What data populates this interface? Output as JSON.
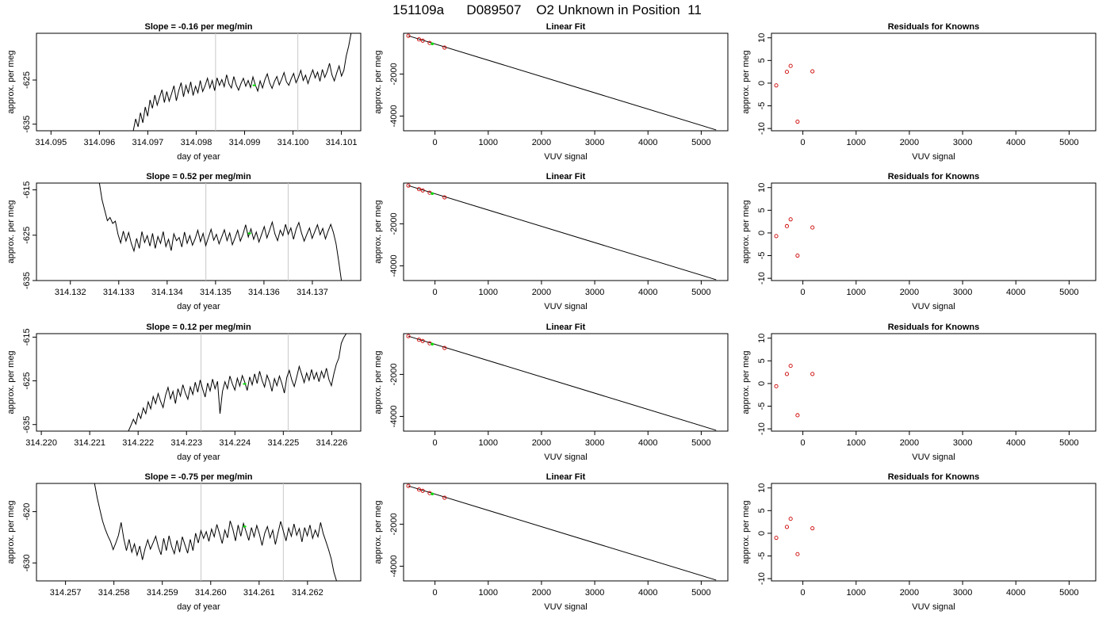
{
  "figure": {
    "title": "151109a      D089507    O2 Unknown in Position  11"
  },
  "colors": {
    "line": "#000000",
    "marker_known": "#cc0000",
    "marker_unknown": "#00dd00",
    "vline": "#c8c8c8"
  },
  "chart_data": [
    {
      "id": "ts1",
      "type": "line",
      "row": 0,
      "col": 0,
      "title": "Slope =  -0.16  per meg/min",
      "xlabel": "day of year",
      "ylabel": "approx. per meg",
      "xlim": [
        314.0947,
        314.1014
      ],
      "ylim": [
        -636.5,
        -614.4
      ],
      "xticks": [
        "314.095",
        "314.096",
        "314.097",
        "314.098",
        "314.099",
        "314.100",
        "314.101"
      ],
      "yticks": [
        "-625",
        "-635"
      ],
      "vlines": [
        314.0984,
        314.1001
      ],
      "start": 314.0967,
      "end": 314.1012,
      "step": 2e-05,
      "y": [
        -636.5,
        -633.8,
        -635.6,
        -632.4,
        -634.7,
        -631.1,
        -633.2,
        -629.5,
        -631.4,
        -628.4,
        -630.7,
        -628.9,
        -627.2,
        -630.1,
        -627.6,
        -629.8,
        -628.1,
        -626.3,
        -629.7,
        -627.4,
        -625.6,
        -628.8,
        -626.2,
        -627.9,
        -625.4,
        -628.5,
        -626.4,
        -627.9,
        -625.1,
        -627.6,
        -626.3,
        -624.6,
        -626.8,
        -625.1,
        -627.4,
        -624.5,
        -626.2,
        -624.9,
        -626.5,
        -623.8,
        -625.9,
        -626.8,
        -624.2,
        -626.1,
        -627.3,
        -625.8,
        -624.6,
        -626.4,
        -625.1,
        -626.7,
        -624.3,
        -626.1,
        -627.5,
        -625.2,
        -626.8,
        -624.9,
        -623.6,
        -625.7,
        -626.9,
        -625.3,
        -624.2,
        -626.1,
        -624.8,
        -623.3,
        -625.4,
        -626.2,
        -624.7,
        -623.5,
        -625.6,
        -624.4,
        -622.8,
        -625.1,
        -623.9,
        -625.8,
        -624.1,
        -622.7,
        -624.5,
        -623.2,
        -625.3,
        -622.6,
        -624.4,
        -623.1,
        -621.2,
        -623.8,
        -625.2,
        -623.4,
        -621.8,
        -624.1,
        -622.8,
        -619.5,
        -617.3,
        -614.4
      ],
      "unknown_point": {
        "x": 314.0992,
        "y": -626.2
      }
    },
    {
      "id": "fit1",
      "type": "scatter",
      "row": 0,
      "col": 1,
      "title": "Linear Fit",
      "xlabel": "VUV signal",
      "ylabel": "approx. per meg",
      "xlim": [
        -590,
        5500
      ],
      "ylim": [
        -4700,
        -60
      ],
      "xticks": [
        0,
        1000,
        2000,
        3000,
        4000,
        5000
      ],
      "yticks": [
        -2000,
        -4000
      ],
      "line": {
        "x": [
          -500,
          5280
        ],
        "y": [
          -180,
          -4660
        ]
      },
      "knowns": {
        "x": [
          -500,
          -300,
          -230,
          -100,
          180
        ],
        "y": [
          -180,
          -350,
          -410,
          -520,
          -740
        ]
      },
      "unknown": {
        "x": -50,
        "y": -560
      }
    },
    {
      "id": "res1",
      "type": "scatter",
      "row": 0,
      "col": 2,
      "title": "Residuals for Knowns",
      "xlabel": "VUV signal",
      "ylabel": "approx. per meg",
      "xlim": [
        -590,
        5500
      ],
      "ylim": [
        -10.5,
        11
      ],
      "xticks": [
        0,
        1000,
        2000,
        3000,
        4000,
        5000
      ],
      "yticks": [
        10,
        5,
        0,
        -5,
        -10
      ],
      "points": {
        "x": [
          -500,
          -300,
          -230,
          -100,
          180
        ],
        "y": [
          -0.5,
          2.5,
          3.8,
          -8.5,
          2.6
        ]
      }
    },
    {
      "id": "ts2",
      "type": "line",
      "row": 1,
      "col": 0,
      "title": "Slope =  0.52  per meg/min",
      "xlabel": "day of year",
      "ylabel": "approx. per meg",
      "xlim": [
        314.1313,
        314.138
      ],
      "ylim": [
        -635,
        -613.5
      ],
      "xticks": [
        "314.132",
        "314.133",
        "314.134",
        "314.135",
        "314.136",
        "314.137"
      ],
      "yticks": [
        "-615",
        "-625",
        "-635"
      ],
      "vlines": [
        314.1348,
        314.1365
      ],
      "start": 314.1326,
      "end": 314.1376,
      "step": 2e-05,
      "y": [
        -613.5,
        -617.2,
        -619.5,
        -621.8,
        -621.1,
        -622.4,
        -621.9,
        -624.8,
        -626.7,
        -624.1,
        -626.3,
        -624.4,
        -626.8,
        -628.5,
        -625.7,
        -627.9,
        -624.2,
        -626.6,
        -625.1,
        -627.4,
        -624.6,
        -627.9,
        -625.3,
        -626.8,
        -624.2,
        -627.5,
        -625.9,
        -628.4,
        -624.7,
        -626.2,
        -625.5,
        -627.6,
        -624.3,
        -626.8,
        -625.1,
        -627.2,
        -625.8,
        -623.9,
        -626.4,
        -624.6,
        -627.3,
        -625.5,
        -623.7,
        -626.1,
        -624.8,
        -626.9,
        -625.4,
        -623.8,
        -626.2,
        -624.5,
        -627.1,
        -625.6,
        -623.9,
        -626.3,
        -624.8,
        -622.7,
        -625.4,
        -623.6,
        -625.9,
        -624.3,
        -626.5,
        -624.8,
        -623.1,
        -625.6,
        -623.9,
        -622.1,
        -624.7,
        -626.2,
        -623.9,
        -625.1,
        -622.6,
        -624.8,
        -623.4,
        -625.9,
        -623.6,
        -622.2,
        -624.5,
        -626.3,
        -624.8,
        -623.4,
        -625.7,
        -624.2,
        -622.7,
        -624.9,
        -623.5,
        -625.8,
        -624.1,
        -622.6,
        -624.4,
        -626.9,
        -630.8,
        -635
      ],
      "unknown_point": {
        "x": 314.1357,
        "y": -624.6
      }
    },
    {
      "id": "fit2",
      "type": "scatter",
      "row": 1,
      "col": 1,
      "title": "Linear Fit",
      "xlabel": "VUV signal",
      "ylabel": "approx. per meg",
      "xlim": [
        -590,
        5500
      ],
      "ylim": [
        -4700,
        -60
      ],
      "xticks": [
        0,
        1000,
        2000,
        3000,
        4000,
        5000
      ],
      "yticks": [
        -2000,
        -4000
      ],
      "line": {
        "x": [
          -500,
          5280
        ],
        "y": [
          -180,
          -4660
        ]
      },
      "knowns": {
        "x": [
          -500,
          -300,
          -230,
          -100,
          180
        ],
        "y": [
          -180,
          -350,
          -410,
          -520,
          -740
        ]
      },
      "unknown": {
        "x": -50,
        "y": -560
      }
    },
    {
      "id": "res2",
      "type": "scatter",
      "row": 1,
      "col": 2,
      "title": "Residuals for Knowns",
      "xlabel": "VUV signal",
      "ylabel": "approx. per meg",
      "xlim": [
        -590,
        5500
      ],
      "ylim": [
        -10.5,
        11
      ],
      "xticks": [
        0,
        1000,
        2000,
        3000,
        4000,
        5000
      ],
      "yticks": [
        10,
        5,
        0,
        -5,
        -10
      ],
      "points": {
        "x": [
          -500,
          -300,
          -230,
          -100,
          180
        ],
        "y": [
          -0.7,
          1.5,
          3.0,
          -5.0,
          1.2
        ]
      }
    },
    {
      "id": "ts3",
      "type": "line",
      "row": 2,
      "col": 0,
      "title": "Slope =  0.12  per meg/min",
      "xlabel": "day of year",
      "ylabel": "approx. per meg",
      "xlim": [
        314.2199,
        314.2266
      ],
      "ylim": [
        -636.5,
        -614.2
      ],
      "xticks": [
        "314.220",
        "314.221",
        "314.222",
        "314.223",
        "314.224",
        "314.225",
        "314.226"
      ],
      "yticks": [
        "-615",
        "-625",
        "-635"
      ],
      "vlines": [
        314.2233,
        314.2251
      ],
      "start": 314.2218,
      "end": 314.2263,
      "step": 2e-05,
      "y": [
        -636.5,
        -635.2,
        -633.8,
        -634.9,
        -632.4,
        -633.6,
        -631.2,
        -632.5,
        -629.8,
        -631.4,
        -628.6,
        -630.2,
        -627.9,
        -629.7,
        -631.1,
        -628.3,
        -626.5,
        -629.1,
        -627.4,
        -630.2,
        -626.8,
        -628.5,
        -625.9,
        -627.8,
        -629.2,
        -626.4,
        -628.1,
        -625.3,
        -627.6,
        -624.8,
        -626.9,
        -628.7,
        -625.5,
        -627.3,
        -624.6,
        -626.8,
        -625.1,
        -632.5,
        -627.4,
        -625.2,
        -626.8,
        -623.9,
        -625.7,
        -627.1,
        -624.4,
        -626.2,
        -623.8,
        -625.3,
        -627.2,
        -624.1,
        -625.9,
        -623.4,
        -625.6,
        -622.8,
        -624.9,
        -626.4,
        -623.7,
        -625.2,
        -627.4,
        -624.5,
        -626.1,
        -623.9,
        -625.6,
        -627.8,
        -624.2,
        -622.6,
        -624.8,
        -626.3,
        -624.1,
        -621.7,
        -623.5,
        -625.4,
        -623.2,
        -624.9,
        -622.4,
        -624.6,
        -623.1,
        -625.2,
        -622.8,
        -624.3,
        -622.1,
        -624.7,
        -626.1,
        -623.4,
        -621.2,
        -619.8,
        -616.4,
        -615.1,
        -614.2
      ],
      "unknown_point": {
        "x": 314.2242,
        "y": -625.7
      }
    },
    {
      "id": "fit3",
      "type": "scatter",
      "row": 2,
      "col": 1,
      "title": "Linear Fit",
      "xlabel": "VUV signal",
      "ylabel": "approx. per meg",
      "xlim": [
        -590,
        5500
      ],
      "ylim": [
        -4700,
        -60
      ],
      "xticks": [
        0,
        1000,
        2000,
        3000,
        4000,
        5000
      ],
      "yticks": [
        -2000,
        -4000
      ],
      "line": {
        "x": [
          -500,
          5280
        ],
        "y": [
          -180,
          -4660
        ]
      },
      "knowns": {
        "x": [
          -500,
          -300,
          -230,
          -100,
          180
        ],
        "y": [
          -180,
          -350,
          -410,
          -520,
          -740
        ]
      },
      "unknown": {
        "x": -50,
        "y": -560
      }
    },
    {
      "id": "res3",
      "type": "scatter",
      "row": 2,
      "col": 2,
      "title": "Residuals for Knowns",
      "xlabel": "VUV signal",
      "ylabel": "approx. per meg",
      "xlim": [
        -590,
        5500
      ],
      "ylim": [
        -10.5,
        11
      ],
      "xticks": [
        0,
        1000,
        2000,
        3000,
        4000,
        5000
      ],
      "yticks": [
        10,
        5,
        0,
        -5,
        -10
      ],
      "points": {
        "x": [
          -500,
          -300,
          -230,
          -100,
          180
        ],
        "y": [
          -0.6,
          2.1,
          3.9,
          -7.0,
          2.1
        ]
      }
    },
    {
      "id": "ts4",
      "type": "line",
      "row": 3,
      "col": 0,
      "title": "Slope =  -0.75  per meg/min",
      "xlabel": "day of year",
      "ylabel": "approx. per meg",
      "xlim": [
        314.2564,
        314.2631
      ],
      "ylim": [
        -633.5,
        -614.5
      ],
      "xticks": [
        "314.257",
        "314.258",
        "314.259",
        "314.260",
        "314.261",
        "314.262"
      ],
      "yticks": [
        "-620",
        "-630"
      ],
      "vlines": [
        314.2598,
        314.2615
      ],
      "start": 314.2576,
      "end": 314.2626,
      "step": 2e-05,
      "y": [
        -614.5,
        -617.3,
        -619.6,
        -621.8,
        -623.4,
        -624.7,
        -625.8,
        -627.4,
        -626.1,
        -624.6,
        -622.1,
        -625.3,
        -627.6,
        -625.4,
        -627.9,
        -626.3,
        -628.5,
        -626.7,
        -629.4,
        -627.2,
        -625.5,
        -627.3,
        -626.1,
        -624.8,
        -626.9,
        -628.4,
        -625.2,
        -627.6,
        -624.7,
        -626.8,
        -628.2,
        -625.6,
        -627.9,
        -624.9,
        -626.5,
        -628.1,
        -625.4,
        -627.6,
        -624.2,
        -626.1,
        -623.7,
        -625.2,
        -623.9,
        -625.8,
        -623.4,
        -624.9,
        -622.5,
        -624.3,
        -626.2,
        -623.6,
        -625.1,
        -621.8,
        -623.4,
        -625.7,
        -622.6,
        -624.8,
        -622.3,
        -623.9,
        -625.6,
        -623.1,
        -624.9,
        -622.7,
        -624.4,
        -626.6,
        -624.2,
        -622.9,
        -625.1,
        -623.6,
        -626.4,
        -624.1,
        -621.9,
        -623.8,
        -625.7,
        -623.2,
        -624.8,
        -622.4,
        -624.6,
        -623.3,
        -625.9,
        -623.1,
        -624.7,
        -622.6,
        -625.2,
        -623.6,
        -624.9,
        -622.1,
        -624.3,
        -625.8,
        -627.4,
        -629.2,
        -631.8,
        -633.5
      ],
      "unknown_point": {
        "x": 314.2607,
        "y": -622.9
      }
    },
    {
      "id": "fit4",
      "type": "scatter",
      "row": 3,
      "col": 1,
      "title": "Linear Fit",
      "xlabel": "VUV signal",
      "ylabel": "approx. per meg",
      "xlim": [
        -590,
        5500
      ],
      "ylim": [
        -4700,
        -60
      ],
      "xticks": [
        0,
        1000,
        2000,
        3000,
        4000,
        5000
      ],
      "yticks": [
        -2000,
        -4000
      ],
      "line": {
        "x": [
          -500,
          5280
        ],
        "y": [
          -180,
          -4660
        ]
      },
      "knowns": {
        "x": [
          -500,
          -300,
          -230,
          -100,
          180
        ],
        "y": [
          -180,
          -350,
          -410,
          -520,
          -740
        ]
      },
      "unknown": {
        "x": -50,
        "y": -560
      }
    },
    {
      "id": "res4",
      "type": "scatter",
      "row": 3,
      "col": 2,
      "title": "Residuals for Knowns",
      "xlabel": "VUV signal",
      "ylabel": "approx. per meg",
      "xlim": [
        -590,
        5500
      ],
      "ylim": [
        -10.5,
        11
      ],
      "xticks": [
        0,
        1000,
        2000,
        3000,
        4000,
        5000
      ],
      "yticks": [
        10,
        5,
        0,
        -5,
        -10
      ],
      "points": {
        "x": [
          -500,
          -300,
          -230,
          -100,
          180
        ],
        "y": [
          -1.0,
          1.4,
          3.2,
          -4.6,
          1.1
        ]
      }
    }
  ]
}
